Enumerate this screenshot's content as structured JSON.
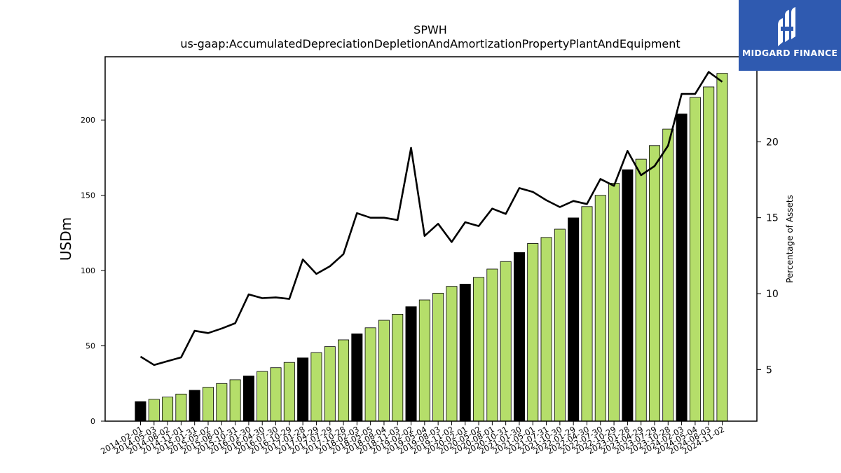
{
  "brand": {
    "name": "MIDGARD FINANCE",
    "accent_color": "#2f5ab0",
    "logo_icon": "midgard-logo-icon"
  },
  "chart_data": {
    "type": "bar",
    "title": "SPWH",
    "subtitle": "us-gaap:AccumulatedDepreciationDepletionAndAmortizationPropertyPlantAndEquipment",
    "ylabel": "USDm",
    "y2label": "Percentage of Assets",
    "ylim": [
      0,
      242
    ],
    "y2lim": [
      1.6,
      25.6
    ],
    "yticks": [
      0,
      50,
      100,
      150,
      200
    ],
    "y2ticks": [
      5,
      10,
      15,
      20
    ],
    "grid": false,
    "colors": {
      "bar_default": "#b5de6a",
      "bar_fiscal_year_end": "#000000",
      "line": "#000000"
    },
    "categories": [
      "2014-02-01",
      "2014-05-03",
      "2014-08-02",
      "2014-11-01",
      "2015-01-31",
      "2015-05-02",
      "2015-08-01",
      "2015-10-31",
      "2016-01-30",
      "2016-04-30",
      "2016-07-30",
      "2016-10-29",
      "2017-01-28",
      "2017-04-29",
      "2017-07-29",
      "2017-10-28",
      "2018-02-03",
      "2018-05-05",
      "2018-08-04",
      "2018-11-03",
      "2019-02-02",
      "2019-05-04",
      "2019-08-03",
      "2019-11-02",
      "2020-02-01",
      "2020-05-02",
      "2020-08-01",
      "2020-10-31",
      "2021-01-30",
      "2021-05-01",
      "2021-07-31",
      "2021-10-30",
      "2022-01-29",
      "2022-04-30",
      "2022-07-30",
      "2022-10-29",
      "2023-01-28",
      "2023-04-29",
      "2023-07-29",
      "2023-10-28",
      "2024-02-03",
      "2024-05-04",
      "2024-08-03",
      "2024-11-02"
    ],
    "series": [
      {
        "kind": "bar",
        "axis": "left",
        "values": [
          13,
          14.5,
          16,
          18,
          20.5,
          22.5,
          25,
          27.5,
          30,
          33,
          35.5,
          39,
          42,
          45.5,
          49.5,
          54,
          58,
          62,
          67,
          71,
          76,
          80.5,
          85,
          89.5,
          91,
          95.5,
          101,
          106,
          112,
          118,
          122,
          127.5,
          135,
          142.5,
          150,
          158,
          167,
          174,
          183,
          194,
          204,
          215,
          222,
          231
        ],
        "fiscal_year_end": [
          true,
          false,
          false,
          false,
          true,
          false,
          false,
          false,
          true,
          false,
          false,
          false,
          true,
          false,
          false,
          false,
          true,
          false,
          false,
          false,
          true,
          false,
          false,
          false,
          true,
          false,
          false,
          false,
          true,
          false,
          false,
          false,
          true,
          false,
          false,
          false,
          true,
          false,
          false,
          false,
          true,
          false,
          false,
          false
        ]
      },
      {
        "kind": "line",
        "axis": "right",
        "values": [
          5.85,
          5.3,
          5.55,
          5.8,
          7.55,
          7.4,
          7.7,
          8.05,
          9.95,
          9.7,
          9.75,
          9.65,
          12.25,
          11.3,
          11.8,
          12.6,
          15.3,
          15.0,
          15.0,
          14.85,
          19.6,
          13.8,
          14.6,
          13.4,
          14.7,
          14.45,
          15.6,
          15.25,
          16.95,
          16.7,
          16.15,
          15.7,
          16.1,
          15.9,
          17.55,
          17.1,
          19.4,
          17.8,
          18.4,
          19.75,
          23.15,
          23.15,
          24.6,
          23.95
        ]
      }
    ]
  }
}
